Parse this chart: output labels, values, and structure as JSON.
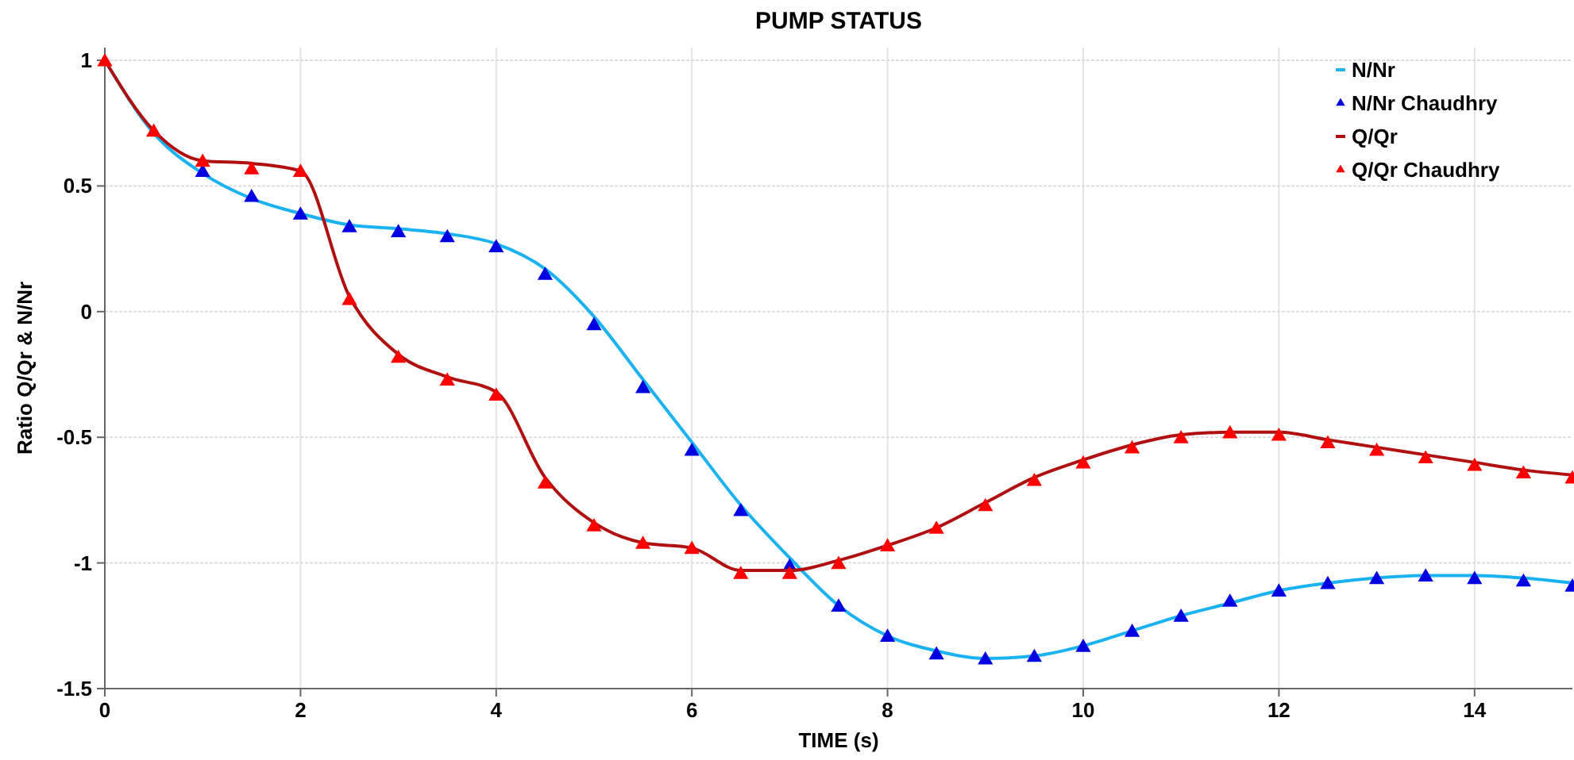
{
  "chart_data": {
    "type": "line",
    "title": "PUMP STATUS",
    "xlabel": "TIME (s)",
    "ylabel": "Ratio Q/Qr & N/Nr",
    "x": [
      0,
      0.5,
      1,
      1.5,
      2,
      2.5,
      3,
      3.5,
      4,
      4.5,
      5,
      5.5,
      6,
      6.5,
      7,
      7.5,
      8,
      8.5,
      9,
      9.5,
      10,
      10.5,
      11,
      11.5,
      12,
      12.5,
      13,
      13.5,
      14,
      14.5,
      15
    ],
    "series": [
      {
        "name": "N/Nr",
        "marker": "none",
        "color": "#1ab2f0",
        "values": [
          1,
          0.71,
          0.55,
          0.45,
          0.39,
          0.345,
          0.33,
          0.31,
          0.27,
          0.17,
          -0.02,
          -0.27,
          -0.52,
          -0.77,
          -0.98,
          -1.17,
          -1.29,
          -1.35,
          -1.38,
          -1.37,
          -1.33,
          -1.27,
          -1.21,
          -1.16,
          -1.11,
          -1.08,
          -1.06,
          -1.05,
          -1.05,
          -1.06,
          -1.08
        ]
      },
      {
        "name": "N/Nr Chaudhry",
        "type": "scatter",
        "marker": "triangle",
        "color": "#0000e0",
        "x": [
          1,
          1.5,
          2,
          2.5,
          3,
          3.5,
          4,
          4.5,
          5,
          5.5,
          6,
          6.5,
          7,
          7.5,
          8,
          8.5,
          9,
          9.5,
          10,
          10.5,
          11,
          11.5,
          12,
          12.5,
          13,
          13.5,
          14,
          14.5,
          15
        ],
        "values": [
          0.56,
          0.46,
          0.39,
          0.34,
          0.32,
          0.3,
          0.26,
          0.15,
          -0.05,
          -0.3,
          -0.55,
          -0.79,
          -1.01,
          -1.17,
          -1.29,
          -1.36,
          -1.38,
          -1.37,
          -1.33,
          -1.27,
          -1.21,
          -1.15,
          -1.11,
          -1.08,
          -1.06,
          -1.05,
          -1.06,
          -1.07,
          -1.09
        ]
      },
      {
        "name": "Q/Qr",
        "marker": "none",
        "color": "#b01010",
        "values": [
          1,
          0.72,
          0.6,
          0.59,
          0.56,
          0.06,
          -0.17,
          -0.26,
          -0.32,
          -0.66,
          -0.84,
          -0.92,
          -0.94,
          -1.03,
          -1.03,
          -0.99,
          -0.93,
          -0.86,
          -0.76,
          -0.66,
          -0.59,
          -0.53,
          -0.49,
          -0.48,
          -0.48,
          -0.51,
          -0.54,
          -0.57,
          -0.6,
          -0.63,
          -0.65
        ]
      },
      {
        "name": "Q/Qr Chaudhry",
        "type": "scatter",
        "marker": "triangle",
        "color": "#ff0000",
        "values": [
          1,
          0.72,
          0.6,
          0.57,
          0.56,
          0.05,
          -0.18,
          -0.27,
          -0.33,
          -0.68,
          -0.85,
          -0.92,
          -0.94,
          -1.04,
          -1.04,
          -1,
          -0.93,
          -0.86,
          -0.77,
          -0.67,
          -0.6,
          -0.54,
          -0.5,
          -0.48,
          -0.49,
          -0.52,
          -0.55,
          -0.58,
          -0.61,
          -0.64,
          -0.66
        ]
      }
    ],
    "xlim": [
      0,
      15
    ],
    "xticks": [
      0,
      2,
      4,
      6,
      8,
      10,
      12,
      14
    ],
    "ylim": [
      -1.5,
      1
    ],
    "yticks": [
      -1.5,
      -1,
      -0.5,
      0,
      0.5,
      1
    ],
    "grid": true,
    "legend": "top right",
    "line_style": "solid"
  }
}
